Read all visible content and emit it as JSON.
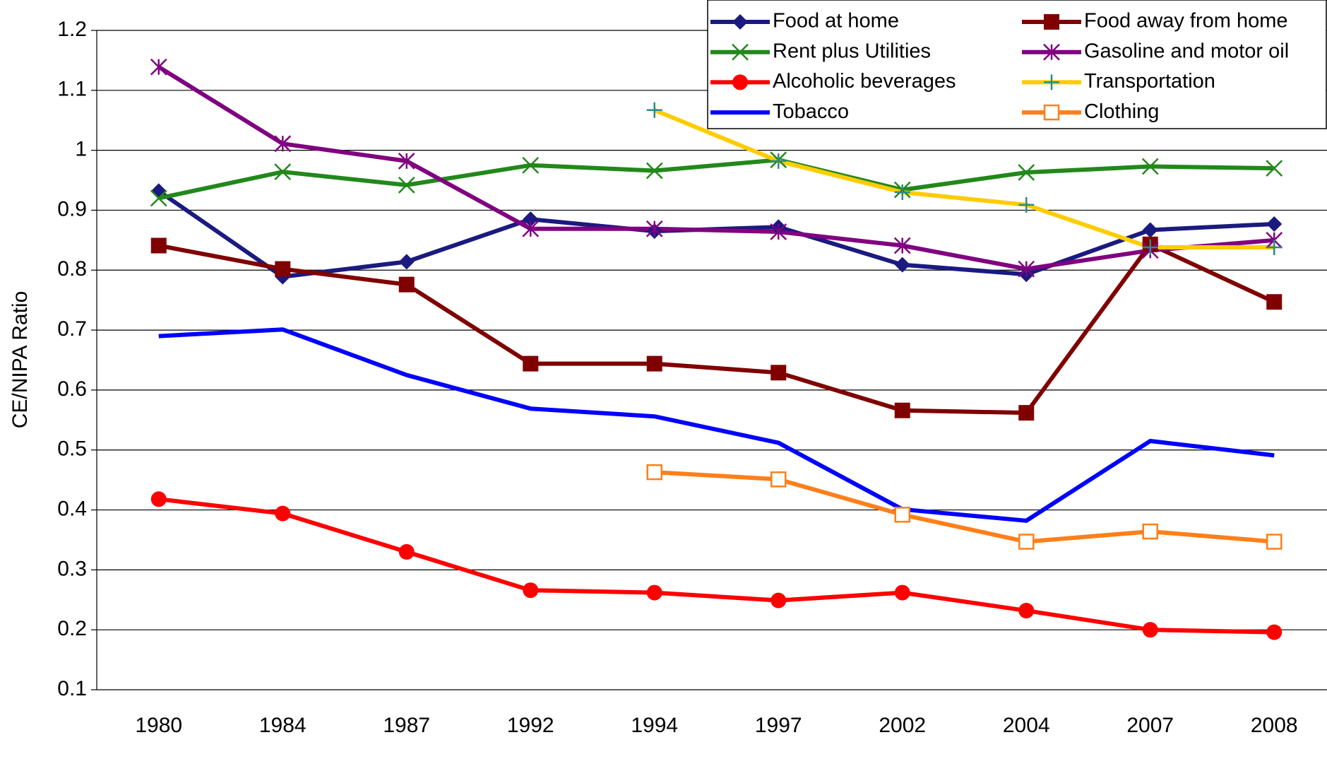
{
  "chart_data": {
    "type": "line",
    "y_label": "CE/NIPA Ratio",
    "categories": [
      "1980",
      "1984",
      "1987",
      "1992",
      "1994",
      "1997",
      "2002",
      "2004",
      "2007",
      "2008"
    ],
    "ylim": [
      0.1,
      1.2
    ],
    "yticks": [
      0.1,
      0.2,
      0.3,
      0.4,
      0.5,
      0.6,
      0.7,
      0.8,
      0.9,
      1,
      1.1,
      1.2
    ],
    "grid": true,
    "legend": "upper right",
    "series": [
      {
        "name": "Food at home",
        "color": "#1a1a80",
        "marker": "diamond",
        "values": [
          0.932,
          0.789,
          0.814,
          0.885,
          0.865,
          0.872,
          0.809,
          0.793,
          0.867,
          0.877
        ]
      },
      {
        "name": "Food away from home",
        "color": "#800000",
        "marker": "square",
        "values": [
          0.841,
          0.802,
          0.776,
          0.644,
          0.644,
          0.629,
          0.566,
          0.562,
          0.843,
          0.747
        ]
      },
      {
        "name": "Rent plus Utilities",
        "color": "#22881a",
        "marker": "x",
        "values": [
          0.92,
          0.964,
          0.942,
          0.975,
          0.966,
          0.984,
          0.934,
          0.963,
          0.973,
          0.97
        ]
      },
      {
        "name": "Gasoline and motor oil",
        "color": "#800080",
        "marker": "asterisk",
        "values": [
          1.139,
          1.011,
          0.982,
          0.869,
          0.869,
          0.864,
          0.841,
          0.802,
          0.833,
          0.85
        ]
      },
      {
        "name": "Alcoholic beverages",
        "color": "#ff0000",
        "marker": "circle",
        "values": [
          0.418,
          0.394,
          0.33,
          0.266,
          0.262,
          0.249,
          0.262,
          0.232,
          0.2,
          0.196
        ]
      },
      {
        "name": "Transportation",
        "color": "#ffcc00",
        "marker": "plus",
        "marker_color": "#2a8a8a",
        "values": [
          null,
          null,
          null,
          null,
          1.067,
          0.982,
          0.93,
          0.909,
          0.838,
          0.838
        ]
      },
      {
        "name": "Tobacco",
        "color": "#0000ff",
        "marker": "none",
        "values": [
          0.69,
          0.701,
          0.625,
          0.569,
          0.556,
          0.512,
          0.401,
          0.382,
          0.515,
          0.491
        ]
      },
      {
        "name": "Clothing",
        "color": "#ff7f1a",
        "marker": "open-square",
        "values": [
          null,
          null,
          null,
          null,
          0.463,
          0.451,
          0.392,
          0.347,
          0.364,
          0.347
        ]
      }
    ]
  }
}
